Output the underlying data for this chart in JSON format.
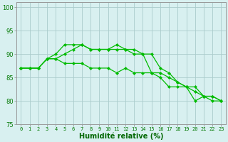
{
  "x": [
    0,
    1,
    2,
    3,
    4,
    5,
    6,
    7,
    8,
    9,
    10,
    11,
    12,
    13,
    14,
    15,
    16,
    17,
    18,
    19,
    20,
    21,
    22,
    23
  ],
  "line1": [
    87,
    87,
    87,
    89,
    89,
    88,
    88,
    88,
    87,
    87,
    87,
    86,
    87,
    86,
    86,
    86,
    86,
    85,
    84,
    83,
    82,
    81,
    81,
    80
  ],
  "line2": [
    87,
    87,
    87,
    89,
    90,
    92,
    92,
    92,
    91,
    91,
    91,
    92,
    91,
    90,
    90,
    86,
    85,
    83,
    83,
    83,
    80,
    81,
    80,
    80
  ],
  "line3": [
    87,
    87,
    87,
    89,
    89,
    90,
    91,
    92,
    91,
    91,
    91,
    91,
    91,
    91,
    90,
    90,
    87,
    86,
    84,
    83,
    83,
    81,
    81,
    80
  ],
  "line_color": "#00bb00",
  "bg_color": "#d8f0f0",
  "grid_major_color": "#aacccc",
  "grid_minor_color": "#c8e8e8",
  "xlabel": "Humidité relative (%)",
  "ylim": [
    75,
    101
  ],
  "xlim": [
    -0.5,
    23.5
  ],
  "yticks": [
    75,
    80,
    85,
    90,
    95,
    100
  ],
  "xticks": [
    0,
    1,
    2,
    3,
    4,
    5,
    6,
    7,
    8,
    9,
    10,
    11,
    12,
    13,
    14,
    15,
    16,
    17,
    18,
    19,
    20,
    21,
    22,
    23
  ],
  "xtick_labels": [
    "0",
    "1",
    "2",
    "3",
    "4",
    "5",
    "6",
    "7",
    "8",
    "9",
    "10",
    "11",
    "12",
    "13",
    "14",
    "15",
    "16",
    "17",
    "18",
    "19",
    "20",
    "21",
    "22",
    "23"
  ]
}
